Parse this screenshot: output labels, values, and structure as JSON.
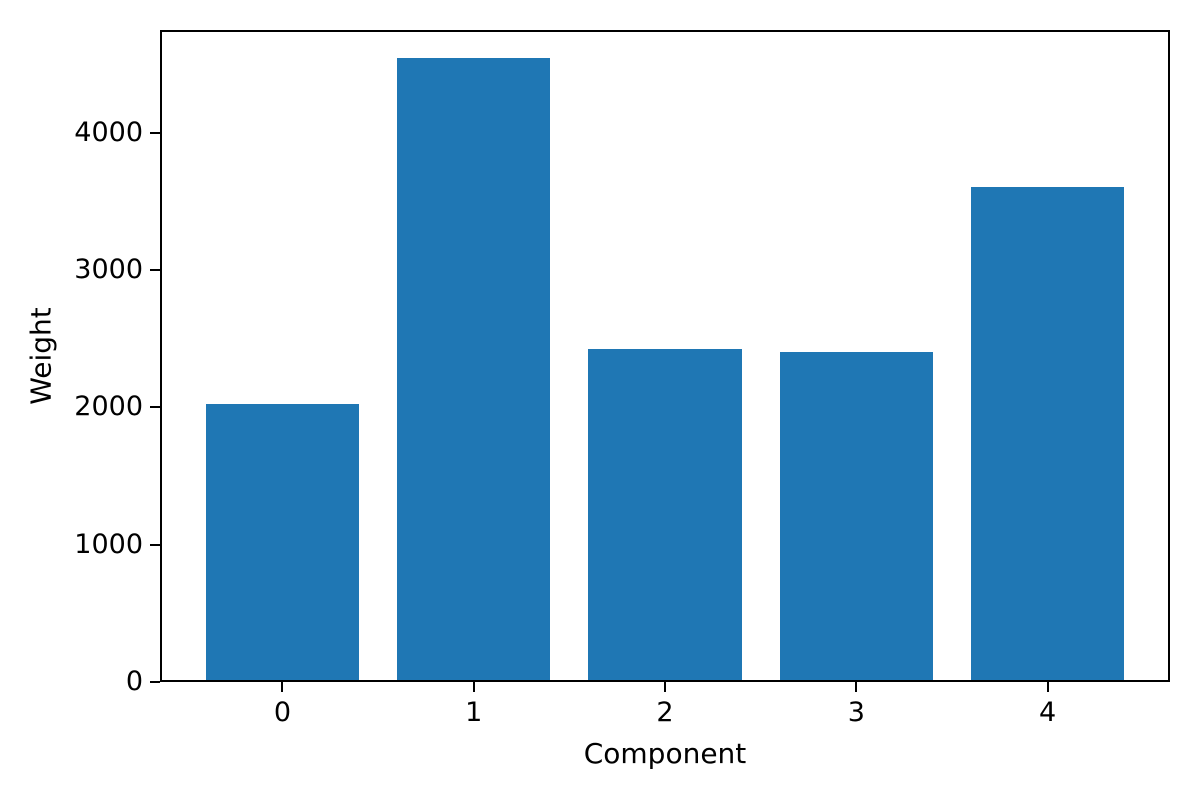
{
  "chart_data": {
    "type": "bar",
    "title": "",
    "xlabel": "Component",
    "ylabel": "Weight",
    "categories": [
      "0",
      "1",
      "2",
      "3",
      "4"
    ],
    "values": [
      2010,
      4530,
      2415,
      2390,
      3590
    ],
    "yticks": [
      0,
      1000,
      2000,
      3000,
      4000
    ],
    "ylim": [
      0,
      4750
    ],
    "grid": false,
    "legend": null,
    "bar_width_fraction": 0.8,
    "bar_color": "#1f77b4",
    "axis_color": "#000000",
    "text_color": "#000000",
    "background": "#ffffff"
  }
}
